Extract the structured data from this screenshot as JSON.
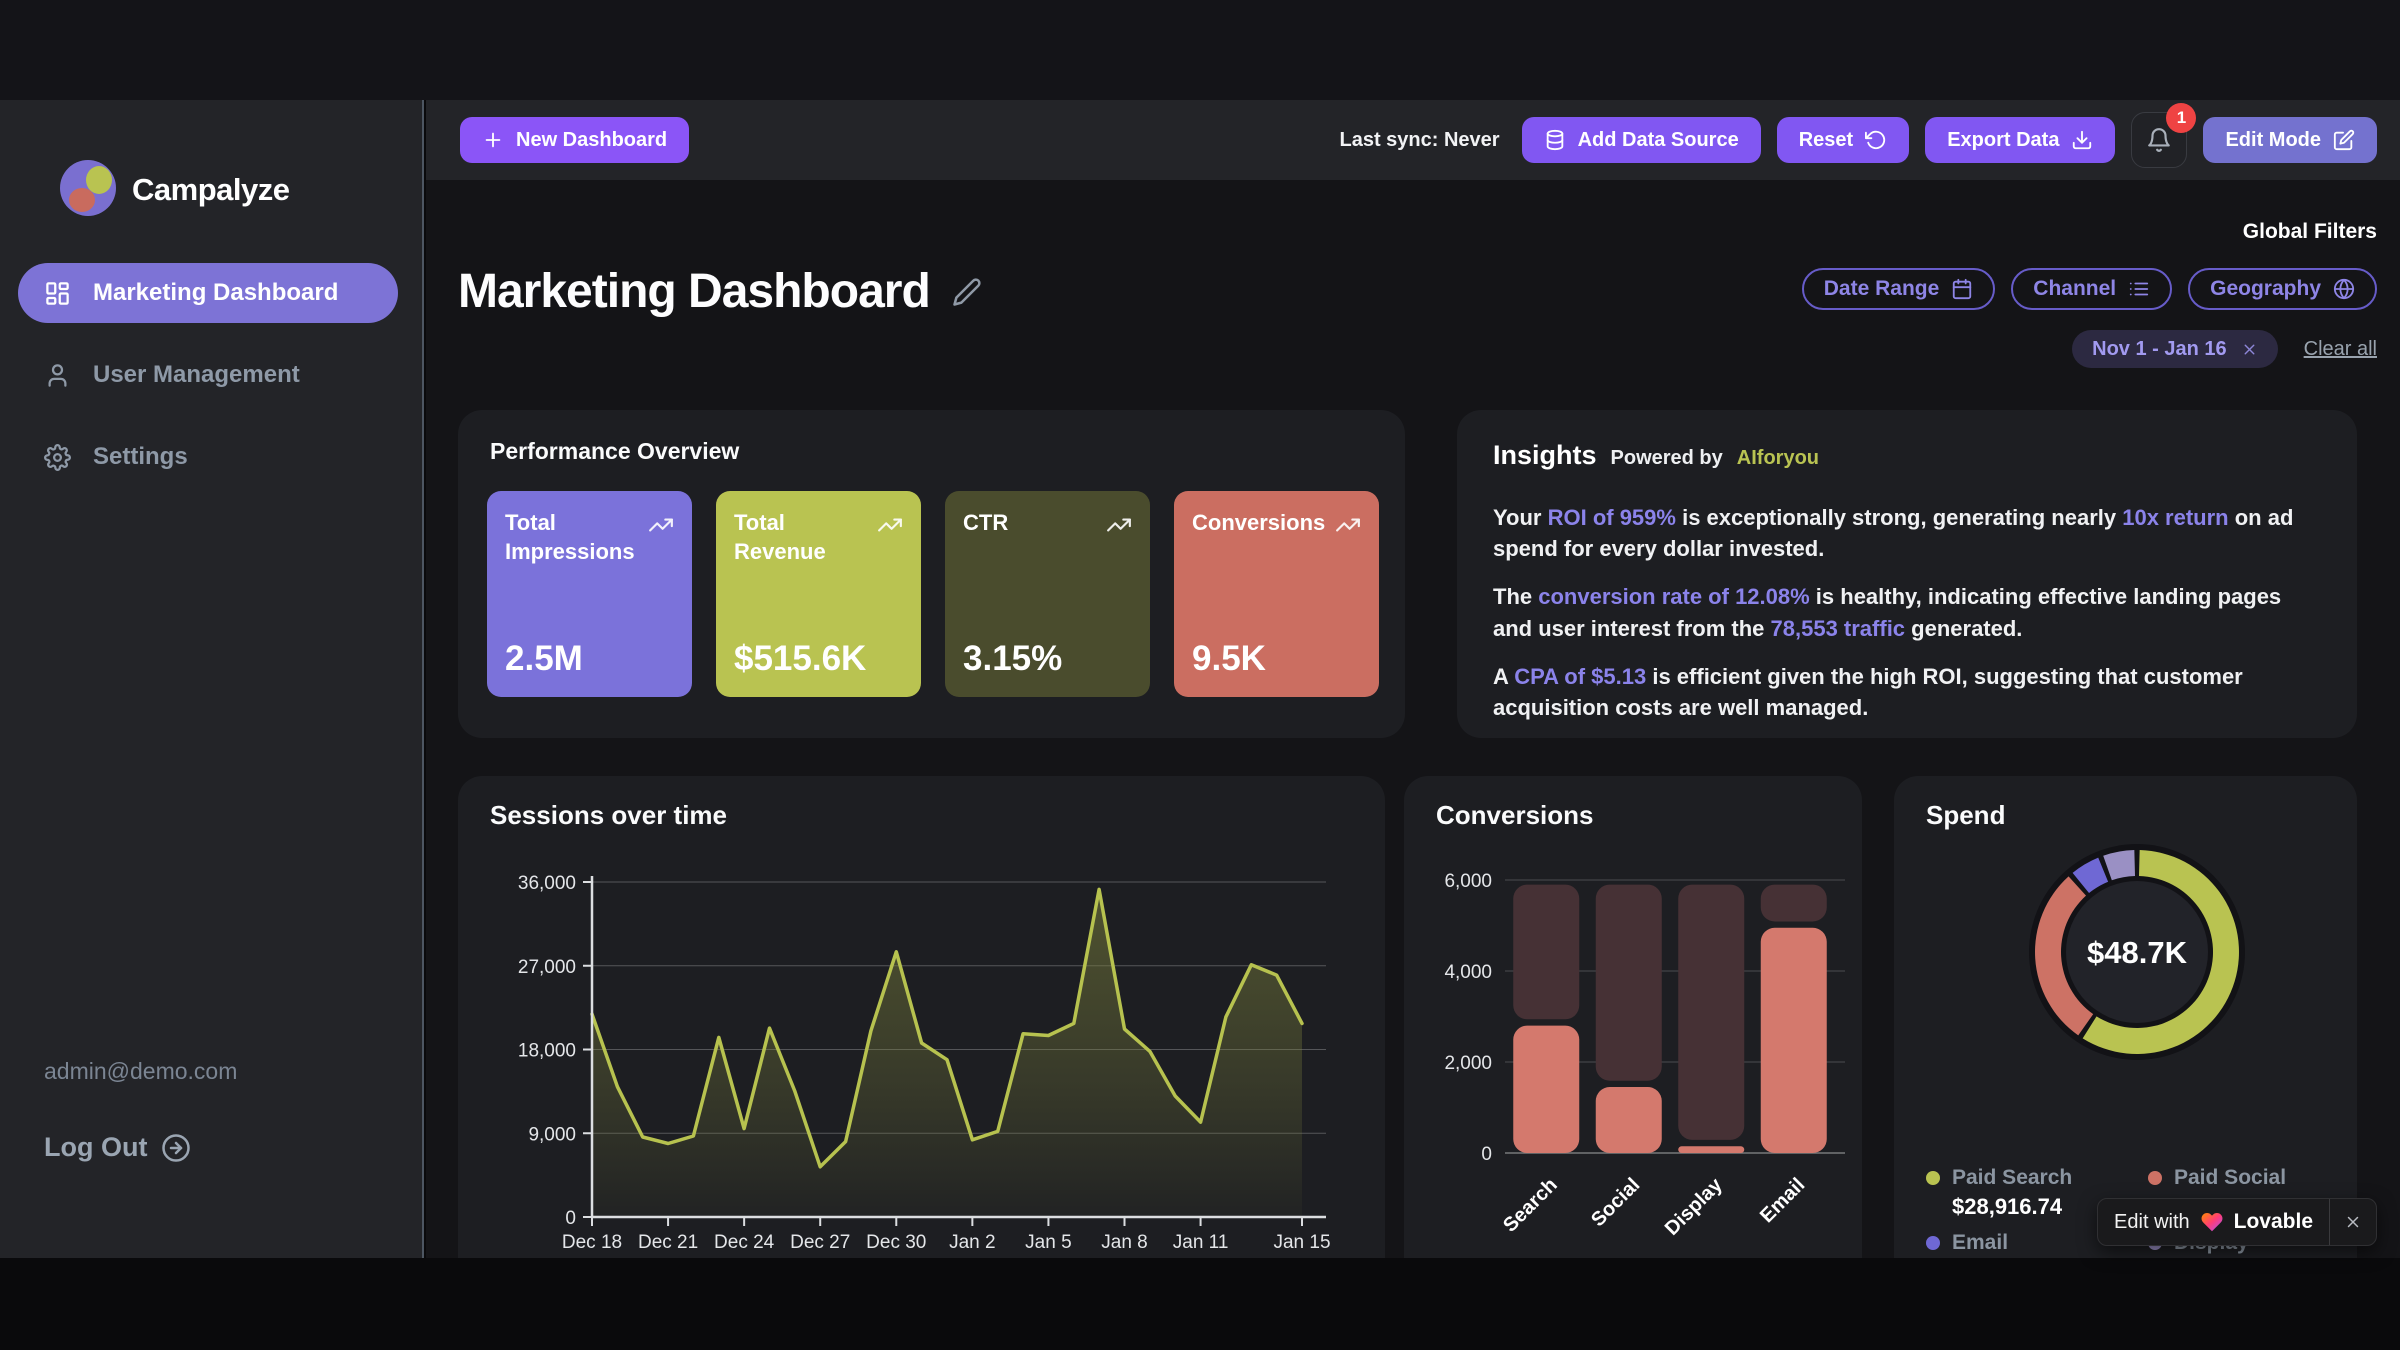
{
  "brand": {
    "name": "Campalyze"
  },
  "topbar": {
    "new_dashboard": {
      "label": "New Dashboard",
      "icon": "plus"
    },
    "last_sync_label": "Last sync: Never",
    "buttons": [
      {
        "id": "add-data-source",
        "label": "Add Data Source",
        "icon": "database"
      },
      {
        "id": "reset",
        "label": "Reset",
        "icon": "rotate-ccw"
      },
      {
        "id": "export-data",
        "label": "Export Data",
        "icon": "download"
      }
    ],
    "notifications": {
      "icon": "bell",
      "badge": "1"
    },
    "edit_mode": {
      "label": "Edit Mode",
      "icon": "edit"
    }
  },
  "sidebar": {
    "nav": [
      {
        "id": "marketing-dashboard",
        "label": "Marketing Dashboard",
        "icon": "grid",
        "active": true
      },
      {
        "id": "user-management",
        "label": "User Management",
        "icon": "user",
        "active": false
      },
      {
        "id": "settings",
        "label": "Settings",
        "icon": "gear",
        "active": false
      }
    ],
    "user_email": "admin@demo.com",
    "logout_label": "Log Out"
  },
  "page": {
    "title": "Marketing Dashboard",
    "global_filters": {
      "heading": "Global Filters",
      "filters": [
        {
          "id": "date-range",
          "label": "Date Range",
          "icon": "calendar"
        },
        {
          "id": "channel",
          "label": "Channel",
          "icon": "list"
        },
        {
          "id": "geography",
          "label": "Geography",
          "icon": "globe"
        }
      ],
      "active_chip": "Nov 1 - Jan 16",
      "clear_all_label": "Clear all"
    }
  },
  "performance": {
    "title": "Performance Overview",
    "kpis": [
      {
        "label": "Total Impressions",
        "value": "2.5M",
        "bg": "#7b72da"
      },
      {
        "label": "Total Revenue",
        "value": "$515.6K",
        "bg": "#b9c351"
      },
      {
        "label": "CTR",
        "value": "3.15%",
        "bg": "#4a4c2d"
      },
      {
        "label": "Conversions",
        "value": "9.5K",
        "bg": "#cb6e61"
      }
    ]
  },
  "insights": {
    "title": "Insights",
    "powered_by": "Powered by",
    "provider": "AIforyou",
    "highlight_color": "#8b83ea",
    "paragraphs": [
      {
        "parts": [
          {
            "t": "Your "
          },
          {
            "t": "ROI of 959%",
            "hl": true
          },
          {
            "t": " is exceptionally strong, generating nearly "
          },
          {
            "t": "10x return",
            "hl": true
          },
          {
            "t": " on ad spend for every dollar invested."
          }
        ]
      },
      {
        "parts": [
          {
            "t": "The "
          },
          {
            "t": "conversion rate of 12.08%",
            "hl": true
          },
          {
            "t": " is healthy, indicating effective landing pages and user interest from the "
          },
          {
            "t": "78,553 traffic",
            "hl": true
          },
          {
            "t": " generated."
          }
        ]
      },
      {
        "parts": [
          {
            "t": "A "
          },
          {
            "t": "CPA of $5.13",
            "hl": true
          },
          {
            "t": " is efficient given the high ROI, suggesting that customer acquisition costs are well managed."
          }
        ]
      }
    ]
  },
  "chart_data": [
    {
      "type": "area-line",
      "title": "Sessions over time",
      "x": [
        "Dec 18",
        "Dec 19",
        "Dec 20",
        "Dec 21",
        "Dec 22",
        "Dec 23",
        "Dec 24",
        "Dec 25",
        "Dec 26",
        "Dec 27",
        "Dec 28",
        "Dec 29",
        "Dec 30",
        "Dec 31",
        "Jan 1",
        "Jan 2",
        "Jan 3",
        "Jan 4",
        "Jan 5",
        "Jan 6",
        "Jan 7",
        "Jan 8",
        "Jan 9",
        "Jan 10",
        "Jan 11",
        "Jan 12",
        "Jan 13",
        "Jan 14",
        "Jan 15"
      ],
      "values": [
        21800,
        14000,
        8600,
        7900,
        8700,
        19300,
        9500,
        20300,
        13500,
        5400,
        8100,
        20000,
        28500,
        18700,
        16900,
        8300,
        9200,
        19700,
        19500,
        20800,
        35200,
        20200,
        17800,
        13000,
        10200,
        21500,
        27100,
        26000,
        20800
      ],
      "shown_x_ticks": [
        "Dec 18",
        "Dec 21",
        "Dec 24",
        "Dec 27",
        "Dec 30",
        "Jan 2",
        "Jan 5",
        "Jan 8",
        "Jan 11",
        "Jan 15"
      ],
      "shown_x_tick_indices": [
        0,
        3,
        6,
        9,
        12,
        15,
        18,
        21,
        24,
        28
      ],
      "ylim": [
        0,
        36000
      ],
      "y_ticks": [
        0,
        9000,
        18000,
        27000,
        36000
      ],
      "y_tick_labels": [
        "0",
        "9,000",
        "18,000",
        "27,000",
        "36,000"
      ],
      "grid": true,
      "legend": false,
      "line_color": "#b7c24f",
      "fill_color": "#7a7f3c"
    },
    {
      "type": "bar",
      "title": "Conversions",
      "categories": [
        "Search",
        "Social",
        "Display",
        "Email"
      ],
      "values": [
        2800,
        1450,
        150,
        4950
      ],
      "track_max": 5900,
      "ylim": [
        0,
        6000
      ],
      "y_ticks": [
        0,
        2000,
        4000,
        6000
      ],
      "y_tick_labels": [
        "0",
        "2,000",
        "4,000",
        "6,000"
      ],
      "grid": true,
      "legend": false,
      "bar_color": "#d4796d",
      "track_color": "#463135"
    },
    {
      "type": "donut",
      "title": "Spend",
      "center_label": "$48.7K",
      "slices": [
        {
          "name": "Paid Search",
          "value": 28916.74,
          "color": "#b9c351",
          "value_label": "$28,916.74"
        },
        {
          "name": "Paid Social",
          "value": 14300,
          "color": "#cd7265"
        },
        {
          "name": "Email",
          "value": 2680,
          "color": "#6f68d4"
        },
        {
          "name": "Display",
          "value": 2820,
          "color": "#9a90c4"
        }
      ],
      "legend": "bottom-two-columns"
    }
  ],
  "lovable_badge": {
    "prefix": "Edit with",
    "brand": "Lovable",
    "icon": "heart",
    "close_icon": "close"
  }
}
